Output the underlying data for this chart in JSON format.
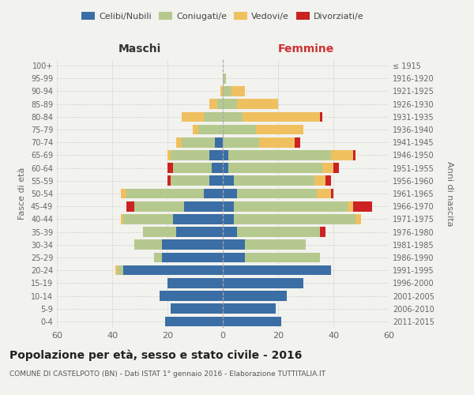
{
  "age_groups": [
    "0-4",
    "5-9",
    "10-14",
    "15-19",
    "20-24",
    "25-29",
    "30-34",
    "35-39",
    "40-44",
    "45-49",
    "50-54",
    "55-59",
    "60-64",
    "65-69",
    "70-74",
    "75-79",
    "80-84",
    "85-89",
    "90-94",
    "95-99",
    "100+"
  ],
  "birth_years": [
    "2011-2015",
    "2006-2010",
    "2001-2005",
    "1996-2000",
    "1991-1995",
    "1986-1990",
    "1981-1985",
    "1976-1980",
    "1971-1975",
    "1966-1970",
    "1961-1965",
    "1956-1960",
    "1951-1955",
    "1946-1950",
    "1941-1945",
    "1936-1940",
    "1931-1935",
    "1926-1930",
    "1921-1925",
    "1916-1920",
    "≤ 1915"
  ],
  "maschi": {
    "celibi": [
      21,
      19,
      23,
      20,
      36,
      22,
      22,
      17,
      18,
      14,
      7,
      5,
      4,
      5,
      3,
      0,
      0,
      0,
      0,
      0,
      0
    ],
    "coniugati": [
      0,
      0,
      0,
      0,
      2,
      3,
      10,
      12,
      18,
      18,
      28,
      14,
      14,
      14,
      12,
      9,
      7,
      2,
      0,
      0,
      0
    ],
    "vedovi": [
      0,
      0,
      0,
      0,
      1,
      0,
      0,
      0,
      1,
      0,
      2,
      0,
      0,
      1,
      2,
      2,
      8,
      3,
      1,
      0,
      0
    ],
    "divorziati": [
      0,
      0,
      0,
      0,
      0,
      0,
      0,
      0,
      0,
      3,
      0,
      1,
      2,
      0,
      0,
      0,
      0,
      0,
      0,
      0,
      0
    ]
  },
  "femmine": {
    "nubili": [
      21,
      19,
      23,
      29,
      39,
      8,
      8,
      5,
      4,
      4,
      5,
      4,
      2,
      2,
      0,
      0,
      0,
      0,
      0,
      0,
      0
    ],
    "coniugate": [
      0,
      0,
      0,
      0,
      0,
      27,
      22,
      30,
      44,
      41,
      29,
      29,
      34,
      37,
      13,
      12,
      7,
      5,
      3,
      1,
      0
    ],
    "vedove": [
      0,
      0,
      0,
      0,
      0,
      0,
      0,
      0,
      2,
      2,
      5,
      4,
      4,
      8,
      13,
      17,
      28,
      15,
      5,
      0,
      0
    ],
    "divorziate": [
      0,
      0,
      0,
      0,
      0,
      0,
      0,
      2,
      0,
      7,
      1,
      2,
      2,
      1,
      2,
      0,
      1,
      0,
      0,
      0,
      0
    ]
  },
  "colors": {
    "celibi_nubili": "#3b6ea5",
    "coniugati_e": "#b5c98e",
    "vedovi_e": "#f0c060",
    "divorziati_e": "#cc2222"
  },
  "title": "Popolazione per età, sesso e stato civile - 2016",
  "subtitle": "COMUNE DI CASTELPOTO (BN) - Dati ISTAT 1° gennaio 2016 - Elaborazione TUTTITALIA.IT",
  "xlabel_left": "Maschi",
  "xlabel_right": "Femmine",
  "ylabel": "Fasce di età",
  "ylabel_right": "Anni di nascita",
  "xlim": 60,
  "bg_color": "#f2f2ee",
  "grid_color": "#cccccc"
}
